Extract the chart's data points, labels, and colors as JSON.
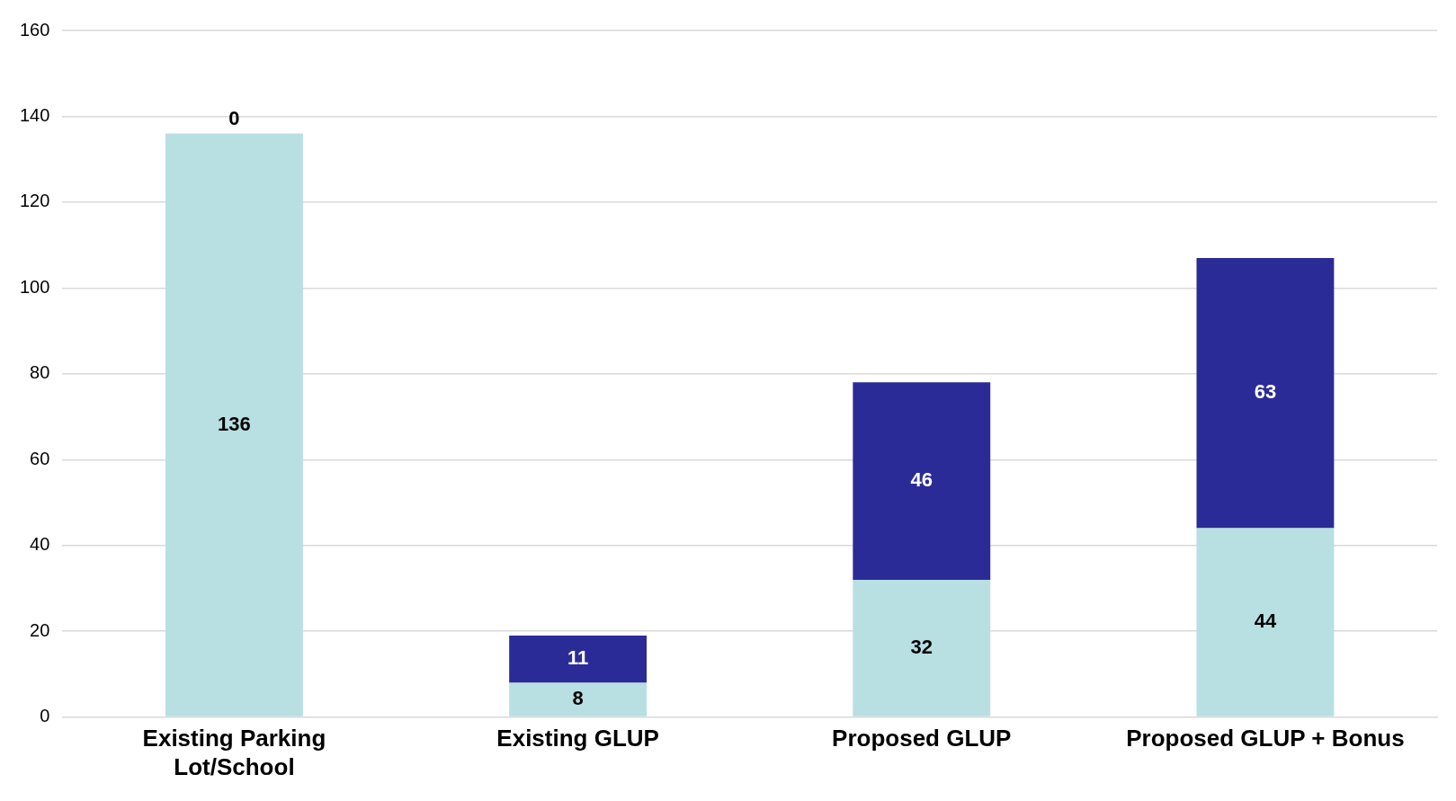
{
  "chart_data": {
    "type": "bar",
    "stacked": true,
    "categories": [
      "Existing Parking Lot/School",
      "Existing GLUP",
      "Proposed GLUP",
      "Proposed GLUP + Bonus"
    ],
    "series": [
      {
        "color": "#b8dfe2",
        "values": [
          136,
          8,
          32,
          44
        ]
      },
      {
        "color": "#2b2b98",
        "values": [
          0,
          11,
          46,
          63
        ]
      }
    ],
    "ylim": [
      0,
      160
    ],
    "yticks": [
      0,
      20,
      40,
      60,
      80,
      100,
      120,
      140,
      160
    ],
    "grid": "y",
    "data_labels": true,
    "legend": false
  }
}
